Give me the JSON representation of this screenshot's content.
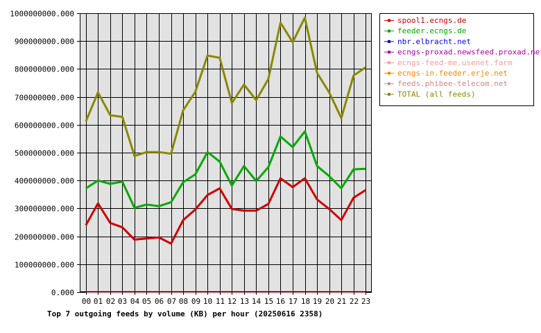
{
  "chart_data": {
    "type": "line",
    "title": "Top 7 outgoing feeds by volume (KB) per hour (20250616 2358)",
    "xlabel": "",
    "ylabel": "",
    "categories": [
      "00",
      "01",
      "02",
      "03",
      "04",
      "05",
      "06",
      "07",
      "08",
      "09",
      "10",
      "11",
      "12",
      "13",
      "14",
      "15",
      "16",
      "17",
      "18",
      "19",
      "20",
      "21",
      "22",
      "23"
    ],
    "ylim": [
      0,
      1000000000
    ],
    "yticks": [
      0,
      100000000,
      200000000,
      300000000,
      400000000,
      500000000,
      600000000,
      700000000,
      800000000,
      900000000,
      1000000000
    ],
    "ytick_labels": [
      "0.000",
      "100000000.000",
      "200000000.000",
      "300000000.000",
      "400000000.000",
      "500000000.000",
      "600000000.000",
      "700000000.000",
      "800000000.000",
      "900000000.000",
      "1000000000.000"
    ],
    "grid": true,
    "legend_position": "right",
    "series": [
      {
        "name": "spool1.ecngs.de",
        "color": "#cc0000",
        "values": [
          240000000,
          318000000,
          248000000,
          232000000,
          188000000,
          192000000,
          196000000,
          174000000,
          258000000,
          296000000,
          348000000,
          372000000,
          298000000,
          292000000,
          292000000,
          316000000,
          408000000,
          376000000,
          408000000,
          332000000,
          298000000,
          258000000,
          338000000,
          366000000
        ]
      },
      {
        "name": "feeder.ecngs.de",
        "color": "#00aa00",
        "values": [
          372000000,
          400000000,
          388000000,
          396000000,
          302000000,
          314000000,
          308000000,
          322000000,
          394000000,
          422000000,
          502000000,
          468000000,
          382000000,
          452000000,
          398000000,
          448000000,
          558000000,
          520000000,
          576000000,
          452000000,
          416000000,
          372000000,
          440000000,
          442000000
        ]
      },
      {
        "name": "nbr.elbracht.net",
        "color": "#0000cc",
        "values": [
          0,
          0,
          0,
          0,
          0,
          0,
          0,
          0,
          0,
          0,
          0,
          0,
          0,
          0,
          0,
          0,
          0,
          0,
          0,
          0,
          0,
          0,
          0,
          0
        ]
      },
      {
        "name": "ecngs-proxad.newsfeed.proxad.net",
        "color": "#aa00aa",
        "values": [
          0,
          0,
          0,
          0,
          0,
          0,
          0,
          0,
          0,
          0,
          0,
          0,
          0,
          0,
          0,
          0,
          0,
          0,
          0,
          0,
          0,
          0,
          0,
          0
        ]
      },
      {
        "name": "ecngs-feed-me.usenet.farm",
        "color": "#ff9999",
        "values": [
          0,
          0,
          0,
          0,
          0,
          0,
          0,
          0,
          0,
          0,
          0,
          0,
          0,
          0,
          0,
          0,
          0,
          0,
          0,
          0,
          0,
          0,
          0,
          0
        ]
      },
      {
        "name": "ecngs-in.feeder.erje.net",
        "color": "#ee8800",
        "values": [
          0,
          0,
          0,
          0,
          0,
          0,
          0,
          0,
          0,
          0,
          0,
          0,
          0,
          0,
          0,
          0,
          0,
          0,
          0,
          0,
          0,
          0,
          0,
          0
        ]
      },
      {
        "name": "feeds.phibee-telecom.net",
        "color": "#cc8888",
        "values": [
          0,
          0,
          0,
          0,
          0,
          0,
          0,
          0,
          0,
          0,
          0,
          0,
          0,
          0,
          0,
          0,
          0,
          0,
          0,
          0,
          0,
          0,
          0,
          0
        ]
      },
      {
        "name": "TOTAL (all feeds)",
        "color": "#888800",
        "values": [
          612000000,
          716000000,
          634000000,
          628000000,
          488000000,
          502000000,
          502000000,
          496000000,
          652000000,
          718000000,
          848000000,
          840000000,
          678000000,
          744000000,
          688000000,
          764000000,
          966000000,
          896000000,
          984000000,
          786000000,
          716000000,
          624000000,
          776000000,
          806000000
        ]
      }
    ]
  }
}
